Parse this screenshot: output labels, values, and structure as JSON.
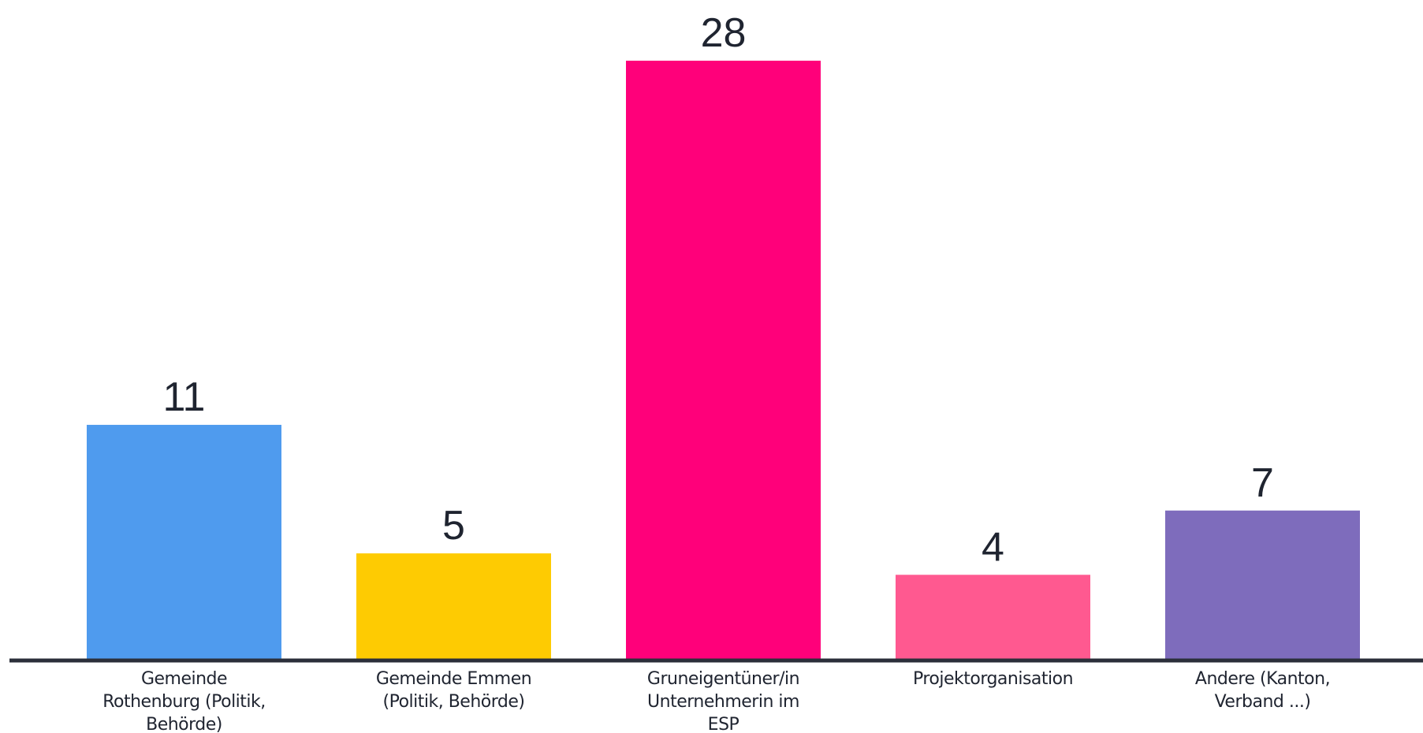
{
  "chart_data": {
    "type": "bar",
    "categories": [
      [
        "Gemeinde",
        "Rothenburg (Politik,",
        "Behörde)"
      ],
      [
        "Gemeinde Emmen",
        "(Politik, Behörde)"
      ],
      [
        "Gruneigentüner/in",
        "Unternehmerin im",
        "ESP"
      ],
      [
        "Projektorganisation"
      ],
      [
        "Andere (Kanton,",
        "Verband ...)"
      ]
    ],
    "values": [
      11,
      5,
      28,
      4,
      7
    ],
    "value_labels": [
      "11",
      "5",
      "28",
      "4",
      "7"
    ],
    "colors": [
      "#4f9bee",
      "#fecb02",
      "#ff007a",
      "#ff5990",
      "#7e6cbc"
    ],
    "axis_color": "#2b2f3a",
    "ylim": [
      0,
      28
    ],
    "grid": false
  }
}
